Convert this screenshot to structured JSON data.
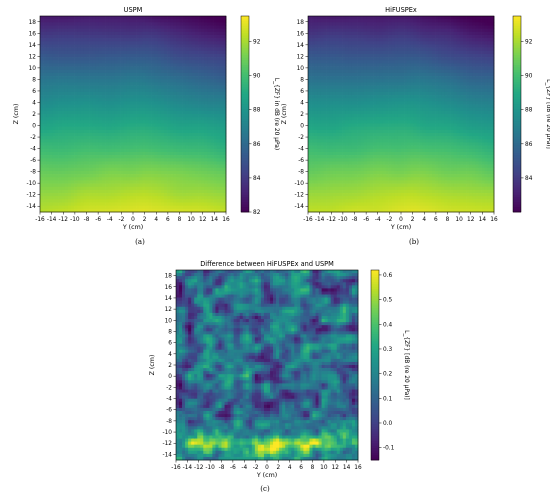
{
  "chart_data": [
    {
      "id": "a",
      "type": "heatmap",
      "title": "USPM",
      "xlabel": "Y (cm)",
      "ylabel": "Z (cm)",
      "x_ticks": [
        "-16",
        "-14",
        "-12",
        "-10",
        "-8",
        "-6",
        "-4",
        "-2",
        "0",
        "2",
        "4",
        "6",
        "8",
        "10",
        "12",
        "14",
        "16"
      ],
      "y_ticks": [
        "18",
        "16",
        "14",
        "12",
        "10",
        "8",
        "6",
        "4",
        "2",
        "0",
        "-2",
        "-4",
        "-6",
        "-8",
        "-10",
        "-12",
        "-14"
      ],
      "xlim": [
        -16,
        16
      ],
      "ylim": [
        -15,
        19
      ],
      "colorbar": {
        "label": "L_{ZF} in dB (re 20 μPa)",
        "ticks": [
          "92",
          "90",
          "88",
          "86",
          "84",
          "82"
        ],
        "range": [
          82,
          93.5
        ],
        "colormap": "viridis"
      },
      "field": "Sound level decreasing from about 93 dB at the bottom center (Z≈-12 cm, Y≈2 cm) to about 82 dB at the top-right corner (Z≈18 cm, Y≈16 cm)",
      "caption": "(a)"
    },
    {
      "id": "b",
      "type": "heatmap",
      "title": "HiFUSPEx",
      "xlabel": "Y (cm)",
      "ylabel": "Z (cm)",
      "x_ticks": [
        "-16",
        "-14",
        "-12",
        "-10",
        "-8",
        "-6",
        "-4",
        "-2",
        "0",
        "2",
        "4",
        "6",
        "8",
        "10",
        "12",
        "14",
        "16"
      ],
      "y_ticks": [
        "18",
        "16",
        "14",
        "12",
        "10",
        "8",
        "6",
        "4",
        "2",
        "0",
        "-2",
        "-4",
        "-6",
        "-8",
        "-10",
        "-12",
        "-14"
      ],
      "xlim": [
        -16,
        16
      ],
      "ylim": [
        -15,
        19
      ],
      "colorbar": {
        "label": "L_{ZF} [dB (re 20 μPa)]",
        "ticks": [
          "92",
          "90",
          "88",
          "86",
          "84"
        ],
        "range": [
          82,
          93.5
        ],
        "colormap": "viridis"
      },
      "field": "Sound level decreasing from about 93 dB at the bottom center to about 82 dB at the top-right corner",
      "caption": "(b)"
    },
    {
      "id": "c",
      "type": "heatmap",
      "title": "Difference between HiFUSPEx and USPM",
      "xlabel": "Y (cm)",
      "ylabel": "Z (cm)",
      "x_ticks": [
        "-16",
        "-14",
        "-12",
        "-10",
        "-8",
        "-6",
        "-4",
        "-2",
        "0",
        "2",
        "4",
        "6",
        "8",
        "10",
        "12",
        "14",
        "16"
      ],
      "y_ticks": [
        "18",
        "16",
        "14",
        "12",
        "10",
        "8",
        "6",
        "4",
        "2",
        "0",
        "-2",
        "-4",
        "-6",
        "-8",
        "-10",
        "-12",
        "-14"
      ],
      "xlim": [
        -16,
        16
      ],
      "ylim": [
        -15,
        19
      ],
      "colorbar": {
        "label": "L_{ZF} [dB (re 20 μPa)]",
        "ticks": [
          "0.6",
          "0.5",
          "0.4",
          "0.3",
          "0.2",
          "0.1",
          "0.0",
          "-0.1"
        ],
        "range": [
          -0.15,
          0.62
        ],
        "colormap": "viridis"
      },
      "field": "Noisy difference field mostly between 0.0 and 0.3 dB, with higher values (about 0.5 dB) along the bottom edge near Z=-12 cm",
      "caption": "(c)"
    }
  ]
}
